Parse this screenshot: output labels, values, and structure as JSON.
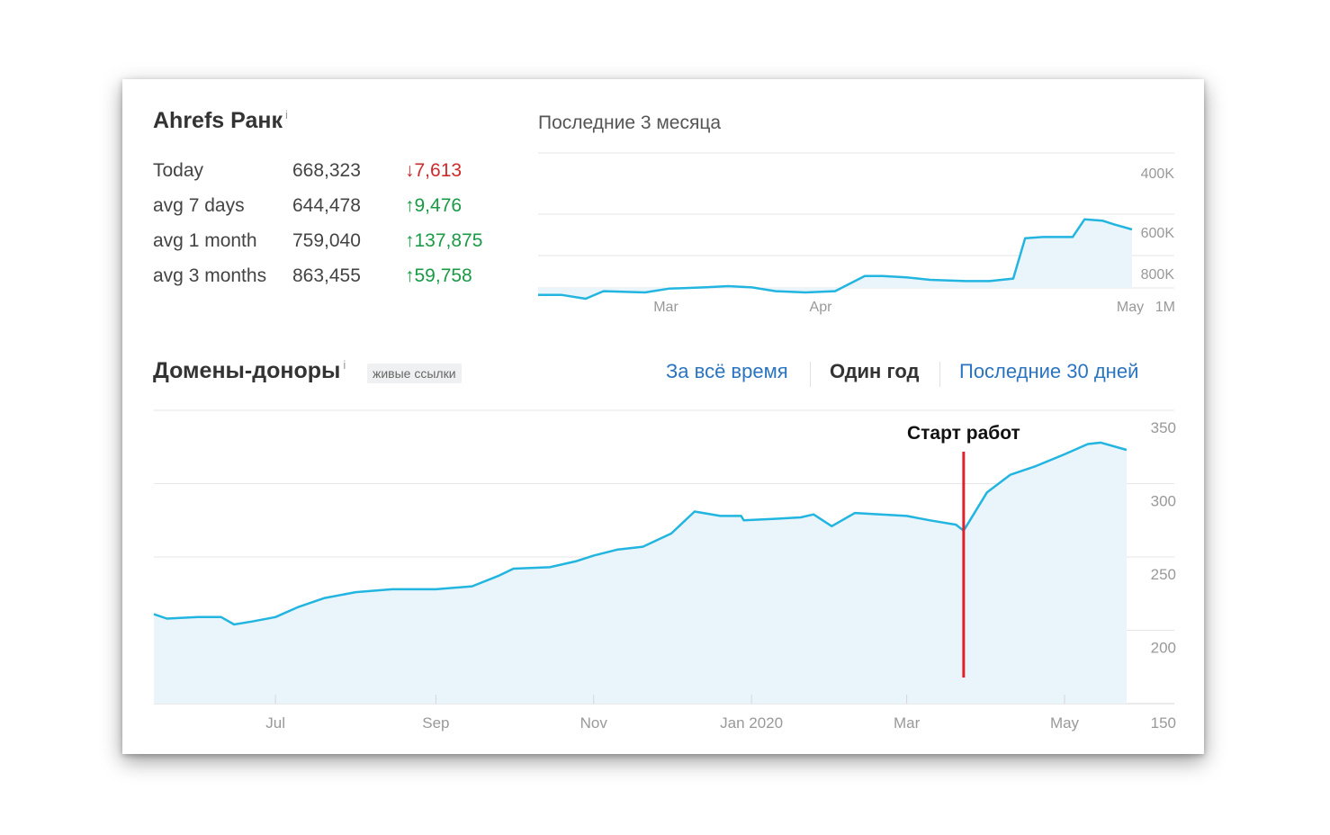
{
  "rank": {
    "title": "Ahrefs Ранк",
    "info": "i",
    "stats": [
      {
        "label": "Today",
        "value": "668,323",
        "change": "7,613",
        "direction": "down",
        "arrow": "↓"
      },
      {
        "label": "avg 7 days",
        "value": "644,478",
        "change": "9,476",
        "direction": "up",
        "arrow": "↑"
      },
      {
        "label": "avg 1 month",
        "value": "759,040",
        "change": "137,875",
        "direction": "up",
        "arrow": "↑"
      },
      {
        "label": "avg 3 months",
        "value": "863,455",
        "change": "59,758",
        "direction": "up",
        "arrow": "↑"
      }
    ]
  },
  "mini_chart": {
    "title": "Последние 3 месяца",
    "period_label": "1M"
  },
  "domains": {
    "title": "Домены-доноры",
    "info": "i",
    "badge": "живые ссылки",
    "range_links": {
      "all_time": "За всё время",
      "one_year": "Один год",
      "last_30": "Последние 30 дней"
    },
    "selected_range": "one_year",
    "annotation_label": "Старт работ"
  },
  "colors": {
    "line": "#22b5e0",
    "area": "#eaf5fb",
    "grid": "#e6e6e6",
    "marker": "#e0202a",
    "up": "#1a9a45",
    "down": "#cc2a2a",
    "link": "#2a74c0"
  },
  "chart_data": [
    {
      "type": "area",
      "title": "Последние 3 месяца",
      "x_ticks": [
        "Mar",
        "Apr",
        "May"
      ],
      "y_ticks": [
        "400K",
        "600K",
        "800K"
      ],
      "ylim": [
        900000,
        350000
      ],
      "y_inverted": true,
      "grid": true,
      "series": [
        {
          "x": [
            0,
            0.04,
            0.08,
            0.11,
            0.18,
            0.22,
            0.28,
            0.32,
            0.36,
            0.4,
            0.45,
            0.5,
            0.55,
            0.58,
            0.62,
            0.66,
            0.72,
            0.76,
            0.8,
            0.82,
            0.85,
            0.9,
            0.92,
            0.95,
            0.97,
            1.0
          ],
          "y": [
            885000,
            885000,
            900000,
            870000,
            875000,
            860000,
            855000,
            850000,
            855000,
            870000,
            875000,
            870000,
            810000,
            810000,
            815000,
            825000,
            830000,
            830000,
            820000,
            660000,
            655000,
            655000,
            585000,
            590000,
            605000,
            625000
          ]
        }
      ]
    },
    {
      "type": "area",
      "title": "Домены-доноры",
      "x_ticks": [
        "Jul",
        "Sep",
        "Nov",
        "Jan 2020",
        "Mar",
        "May"
      ],
      "y_ticks": [
        350,
        300,
        250,
        200,
        150
      ],
      "ylim": [
        150,
        350
      ],
      "grid": true,
      "annotation": {
        "label": "Старт работ",
        "x": "2020-03-23"
      },
      "series": [
        {
          "x": [
            "2019-05-15",
            "2019-05-20",
            "2019-06-01",
            "2019-06-10",
            "2019-06-15",
            "2019-06-22",
            "2019-07-01",
            "2019-07-10",
            "2019-07-20",
            "2019-08-01",
            "2019-08-15",
            "2019-09-01",
            "2019-09-15",
            "2019-09-25",
            "2019-10-01",
            "2019-10-15",
            "2019-10-25",
            "2019-11-01",
            "2019-11-10",
            "2019-11-20",
            "2019-12-01",
            "2019-12-10",
            "2019-12-20",
            "2019-12-28",
            "2019-12-29",
            "2020-01-10",
            "2020-01-20",
            "2020-01-25",
            "2020-02-01",
            "2020-02-10",
            "2020-02-20",
            "2020-03-01",
            "2020-03-10",
            "2020-03-20",
            "2020-03-23",
            "2020-04-01",
            "2020-04-10",
            "2020-04-20",
            "2020-05-01",
            "2020-05-10",
            "2020-05-15",
            "2020-05-25"
          ],
          "y": [
            211,
            208,
            209,
            209,
            204,
            206,
            209,
            216,
            222,
            226,
            228,
            228,
            230,
            237,
            242,
            243,
            247,
            251,
            255,
            257,
            266,
            281,
            278,
            278,
            275,
            276,
            277,
            279,
            271,
            280,
            279,
            278,
            275,
            272,
            268,
            294,
            306,
            312,
            320,
            327,
            328,
            323
          ]
        }
      ]
    }
  ]
}
